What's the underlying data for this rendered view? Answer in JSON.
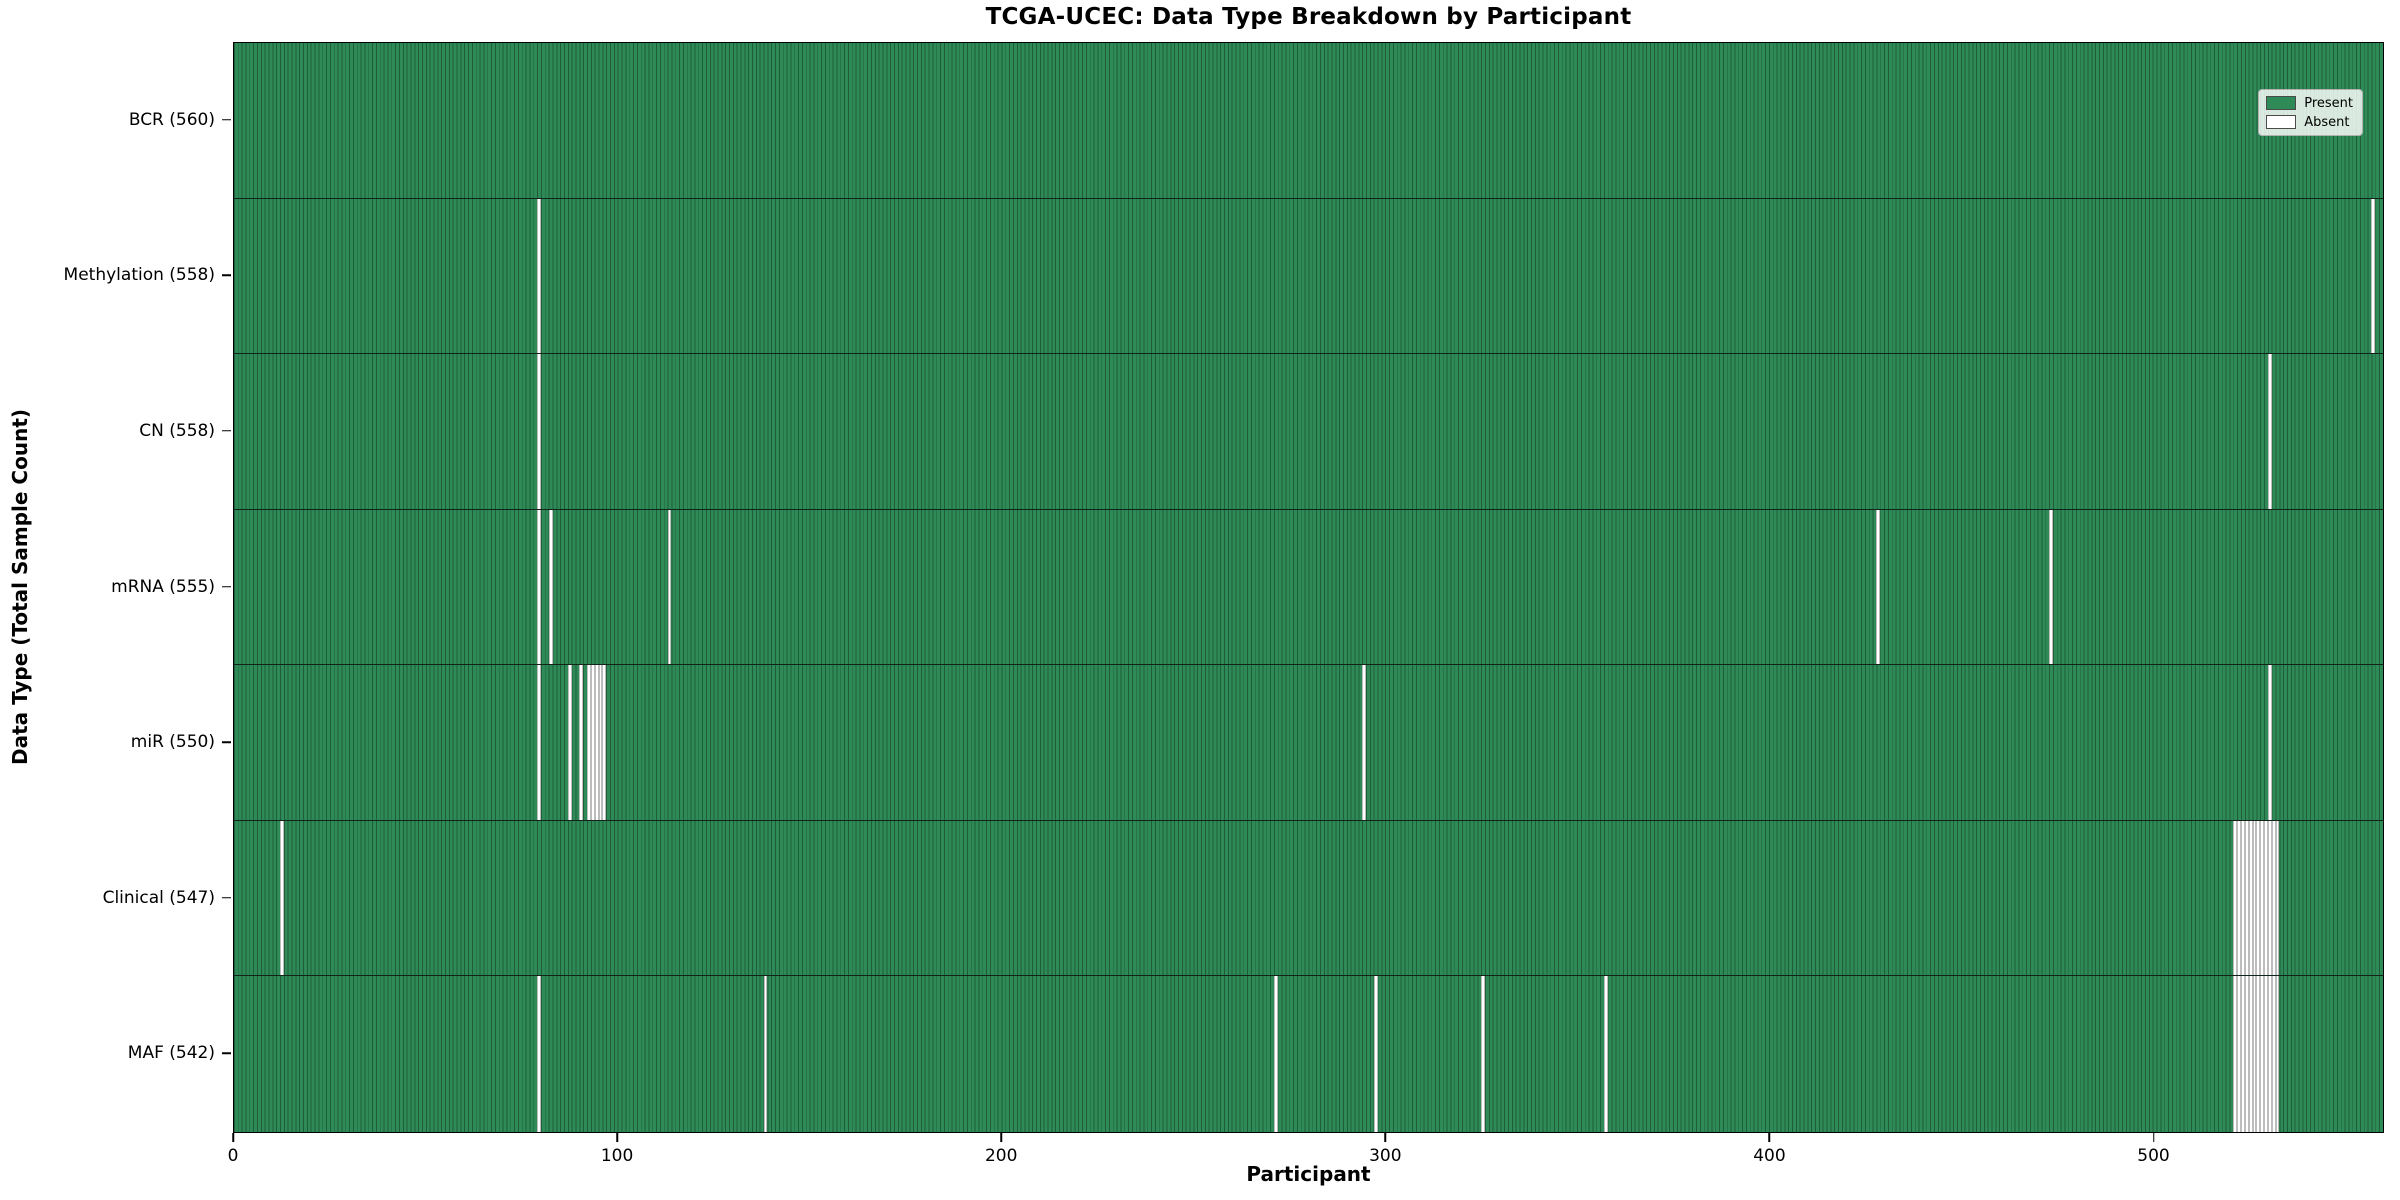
{
  "title": "TCGA-UCEC: Data Type Breakdown by Participant",
  "xlabel": "Participant",
  "ylabel": "Data Type (Total Sample Count)",
  "legend": {
    "present_label": "Present",
    "absent_label": "Absent"
  },
  "colors": {
    "present": "#2e8b57",
    "present_edge": "#1e5c3a",
    "absent": "#ffffff",
    "absent_separator": "#bcbcbc",
    "spine": "#000000",
    "background": "#ffffff"
  },
  "chart_data": {
    "type": "heatmap",
    "title": "TCGA-UCEC: Data Type Breakdown by Participant",
    "xlabel": "Participant",
    "ylabel": "Data Type (Total Sample Count)",
    "legend": [
      "Present",
      "Absent"
    ],
    "legend_position": "upper right",
    "grid": false,
    "total_participants": 560,
    "xlim": [
      0,
      560
    ],
    "x_ticks": [
      0,
      100,
      200,
      300,
      400,
      500
    ],
    "rows": [
      {
        "name": "BCR",
        "label": "BCR (560)",
        "count": 560,
        "absent_participants": []
      },
      {
        "name": "Methylation",
        "label": "Methylation (558)",
        "count": 558,
        "absent_participants": [
          79,
          557
        ]
      },
      {
        "name": "CN",
        "label": "CN (558)",
        "count": 558,
        "absent_participants": [
          79,
          530
        ]
      },
      {
        "name": "mRNA",
        "label": "mRNA (555)",
        "count": 555,
        "absent_participants": [
          79,
          82,
          113,
          428,
          473
        ]
      },
      {
        "name": "miR",
        "label": "miR (550)",
        "count": 550,
        "absent_participants": [
          79,
          87,
          90,
          92,
          93,
          94,
          95,
          96,
          294,
          530
        ]
      },
      {
        "name": "Clinical",
        "label": "Clinical (547)",
        "count": 547,
        "absent_participants": [
          12,
          521,
          522,
          523,
          524,
          525,
          526,
          527,
          528,
          529,
          530,
          531,
          532
        ]
      },
      {
        "name": "MAF",
        "label": "MAF (542)",
        "count": 542,
        "absent_participants": [
          79,
          138,
          271,
          297,
          325,
          357,
          521,
          522,
          523,
          524,
          525,
          526,
          527,
          528,
          529,
          530,
          531,
          532
        ]
      }
    ]
  }
}
